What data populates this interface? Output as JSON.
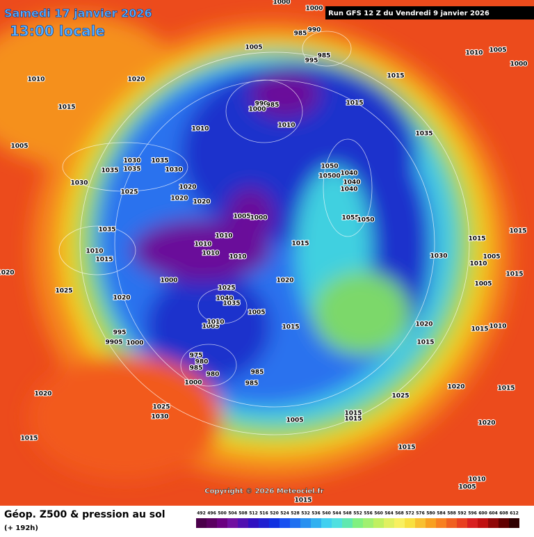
{
  "header": {
    "title": "Samedi 17 janvier 2026",
    "time": "13:00 locale",
    "run": "Run GFS 12 Z du Vendredi 9 janvier 2026"
  },
  "copyright": "Copyright © 2026 Meteociel.fr",
  "footer": {
    "title": "Géop. Z500 & pression au sol",
    "lead": "(+ 192h)"
  },
  "legend": {
    "values": [
      492,
      496,
      500,
      504,
      508,
      512,
      516,
      520,
      524,
      528,
      532,
      536,
      540,
      544,
      548,
      552,
      556,
      560,
      564,
      568,
      572,
      576,
      580,
      584,
      588,
      592,
      596,
      600,
      604,
      608,
      612
    ],
    "colors": [
      "#4a004a",
      "#5a0060",
      "#6a0080",
      "#7010a0",
      "#5010b0",
      "#3010c0",
      "#2020d0",
      "#1030e0",
      "#1850f0",
      "#2070f0",
      "#2890f0",
      "#30b0f0",
      "#40d0f0",
      "#50e0e0",
      "#60e8b0",
      "#80f080",
      "#a0f070",
      "#c0f060",
      "#e0f060",
      "#f8f060",
      "#f8e040",
      "#f8c030",
      "#f8a020",
      "#f88020",
      "#f06020",
      "#e84020",
      "#d82020",
      "#c01010",
      "#900808",
      "#600000",
      "#300000"
    ]
  },
  "isobar_labels": [
    "1000",
    "1000",
    "990",
    "985",
    "985",
    "995",
    "1005",
    "1010",
    "1005",
    "1000",
    "1010",
    "1020",
    "1015",
    "1015",
    "1015",
    "990",
    "985",
    "1000",
    "1010",
    "1035",
    "1005",
    "1010",
    "1030",
    "1035",
    "1035",
    "1035",
    "1030",
    "1030",
    "1025",
    "1020",
    "1020",
    "1020",
    "1050",
    "10500",
    "1040",
    "1040",
    "1040",
    "1005",
    "1000",
    "1055",
    "1050",
    "1035",
    "1010",
    "1010",
    "1015",
    "1015",
    "1015",
    "1010",
    "1015",
    "1010",
    "1010",
    "1030",
    "1010",
    "1005",
    "1015",
    "1000",
    "1020",
    "1025",
    "1005",
    "1025",
    "1020",
    "1040",
    "1035",
    "1005",
    "1005",
    "1010",
    "1015",
    "1020",
    "1010",
    "1015",
    "995",
    "9905",
    "1000",
    "1015",
    "975",
    "980",
    "985",
    "980",
    "985",
    "1000",
    "985",
    "1020",
    "1015",
    "1020",
    "1025",
    "1025",
    "1030",
    "1015",
    "1005",
    "1015",
    "1020",
    "1015",
    "1015",
    "1010",
    "1005",
    "1015",
    "1020"
  ]
}
